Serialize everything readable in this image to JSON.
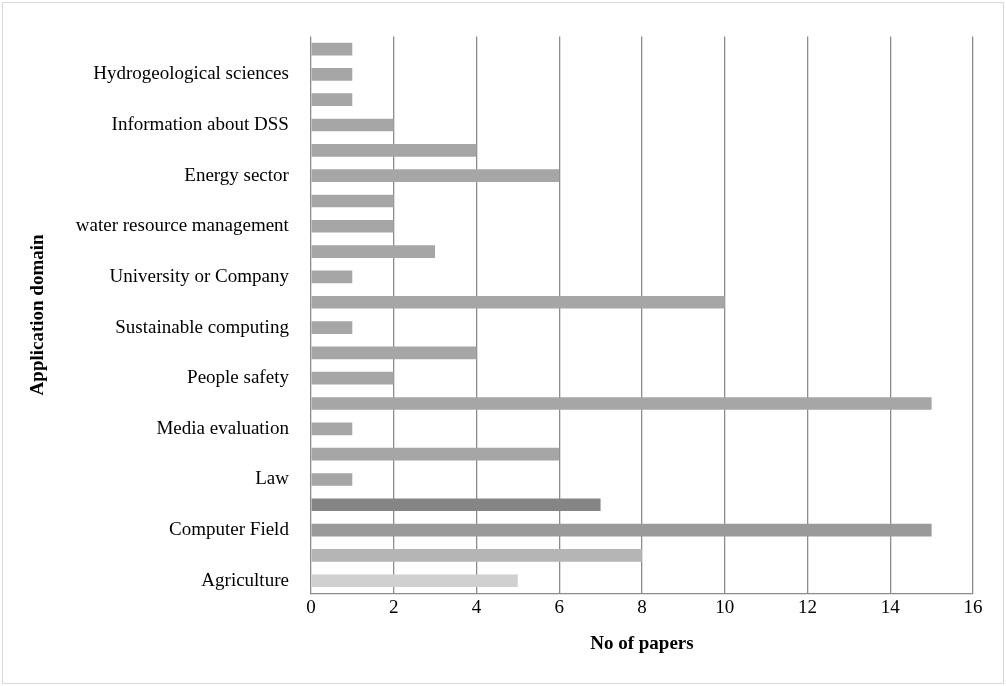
{
  "chart_data": {
    "type": "bar",
    "orientation": "horizontal",
    "xlabel": "No of papers",
    "ylabel": "Application domain",
    "categories": [
      null,
      "Hydrogeological sciences",
      null,
      "Information about DSS",
      null,
      "Energy sector",
      null,
      "water resource management",
      null,
      "University or Company",
      null,
      "Sustainable computing",
      null,
      "People safety",
      null,
      "Media evaluation",
      null,
      "Law",
      null,
      "Computer Field",
      null,
      "Agriculture"
    ],
    "values": [
      1,
      1,
      1,
      2,
      4,
      6,
      2,
      2,
      3,
      1,
      10,
      1,
      4,
      2,
      15,
      1,
      6,
      1,
      7,
      15,
      8,
      5
    ],
    "colors": [
      "#a6a6a6",
      "#a6a6a6",
      "#a6a6a6",
      "#a6a6a6",
      "#a6a6a6",
      "#a6a6a6",
      "#a6a6a6",
      "#a6a6a6",
      "#a6a6a6",
      "#a6a6a6",
      "#a6a6a6",
      "#a6a6a6",
      "#a6a6a6",
      "#a6a6a6",
      "#a6a6a6",
      "#a6a6a6",
      "#a6a6a6",
      "#a6a6a6",
      "#858585",
      "#9a9a9a",
      "#b5b5b5",
      "#d0d0d0"
    ],
    "xlim": [
      0,
      16
    ],
    "xticks": [
      0,
      2,
      4,
      6,
      8,
      10,
      12,
      14,
      16
    ],
    "grid": "x",
    "legend": false
  }
}
